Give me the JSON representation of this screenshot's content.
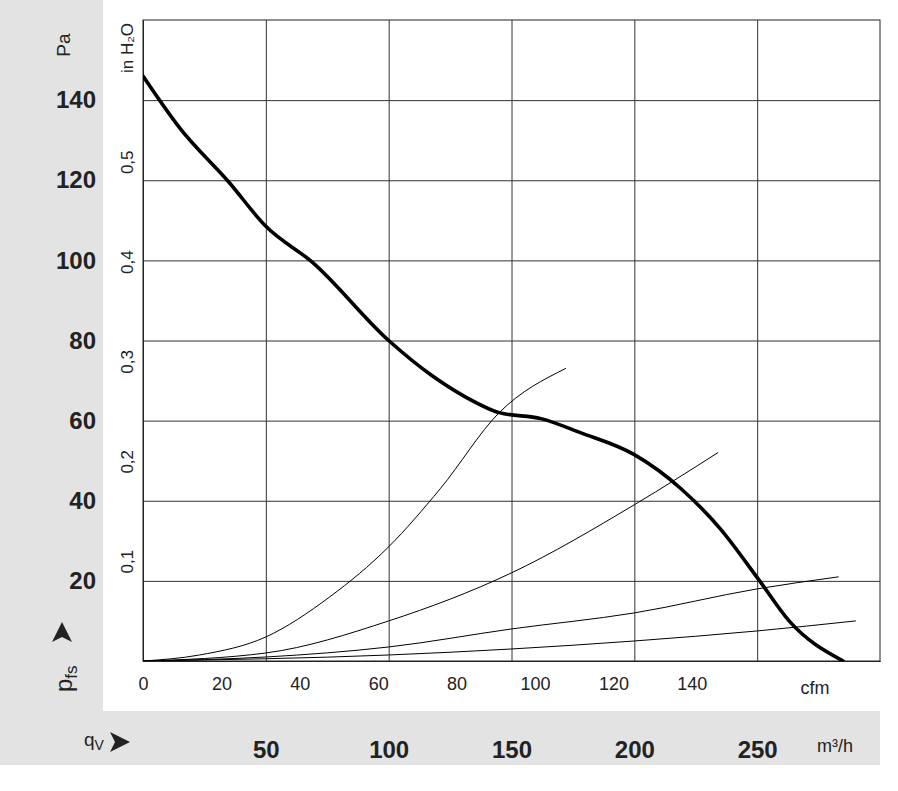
{
  "chart_data": {
    "type": "line",
    "y_title": "Pa",
    "y_label": {
      "text": "p",
      "sub": "fs"
    },
    "y2_title": "in H₂O",
    "x_title": "m³/h",
    "x_label": {
      "text": "q",
      "sub": "V"
    },
    "x2_title": "cfm",
    "xlim": [
      0,
      300
    ],
    "xticks": [
      50,
      100,
      150,
      200,
      250
    ],
    "ylim": [
      0,
      160
    ],
    "yticks": [
      20,
      40,
      60,
      80,
      100,
      120,
      140
    ],
    "x2lim": [
      0,
      188
    ],
    "x2ticks": [
      0,
      20,
      40,
      60,
      80,
      100,
      120,
      140
    ],
    "y2lim": [
      0,
      0.642
    ],
    "y2ticks": [
      {
        "value": 0.1,
        "label": "0,1"
      },
      {
        "value": 0.2,
        "label": "0,2"
      },
      {
        "value": 0.3,
        "label": "0,3"
      },
      {
        "value": 0.4,
        "label": "0,4"
      },
      {
        "value": 0.5,
        "label": "0,5"
      }
    ],
    "grid": true,
    "tick_labels": true,
    "series": [
      {
        "color": "#000000",
        "line_style": "thick",
        "x": [
          0,
          15,
          35,
          50,
          69,
          100,
          117,
          131,
          145,
          162,
          178,
          200,
          219,
          235,
          251,
          263,
          285
        ],
        "values": [
          146,
          133,
          119.5,
          108.5,
          99.5,
          80,
          71.5,
          66,
          62,
          60.5,
          57,
          51.5,
          43,
          33,
          20,
          10,
          0
        ]
      },
      {
        "color": "#000000",
        "line_style": "thin",
        "x": [
          0,
          23,
          50,
          76,
          100,
          121,
          145,
          172
        ],
        "values": [
          0,
          1.5,
          6,
          16,
          28.5,
          43,
          62,
          73
        ]
      },
      {
        "color": "#000000",
        "line_style": "thin",
        "x": [
          0,
          50,
          100,
          150,
          200,
          234
        ],
        "values": [
          0,
          2,
          10,
          22,
          39,
          52
        ]
      },
      {
        "color": "#000000",
        "line_style": "thin",
        "x": [
          0,
          50,
          100,
          150,
          200,
          250,
          283
        ],
        "values": [
          0,
          1,
          3.5,
          8,
          12,
          18,
          21
        ]
      },
      {
        "color": "#000000",
        "line_style": "thin",
        "x": [
          0,
          100,
          150,
          200,
          250,
          290
        ],
        "values": [
          0,
          1.5,
          3,
          5,
          7.5,
          10
        ]
      }
    ]
  }
}
